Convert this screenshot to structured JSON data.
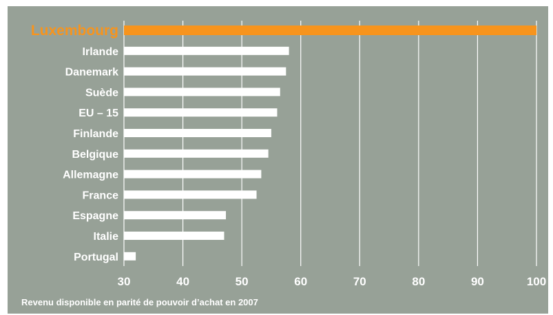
{
  "chart_data": {
    "type": "bar",
    "orientation": "horizontal",
    "categories": [
      "Luxembourg",
      "Irlande",
      "Danemark",
      "Suède",
      "EU – 15",
      "Finlande",
      "Belgique",
      "Allemagne",
      "France",
      "Espagne",
      "Italie",
      "Portugal"
    ],
    "values": [
      100,
      58,
      57.5,
      56.5,
      56,
      55,
      54.5,
      53.3,
      52.5,
      47.3,
      47,
      32
    ],
    "highlight": "Luxembourg",
    "xlim": [
      30,
      100
    ],
    "xticks": [
      "30",
      "40",
      "50",
      "60",
      "70",
      "80",
      "90",
      "100"
    ],
    "grid": true,
    "caption": "Revenu disponible en parité de pouvoir d’achat en 2007"
  },
  "colors": {
    "background": "#97a197",
    "bar": "#ffffff",
    "highlight": "#f7941d",
    "grid": "#ffffff"
  }
}
